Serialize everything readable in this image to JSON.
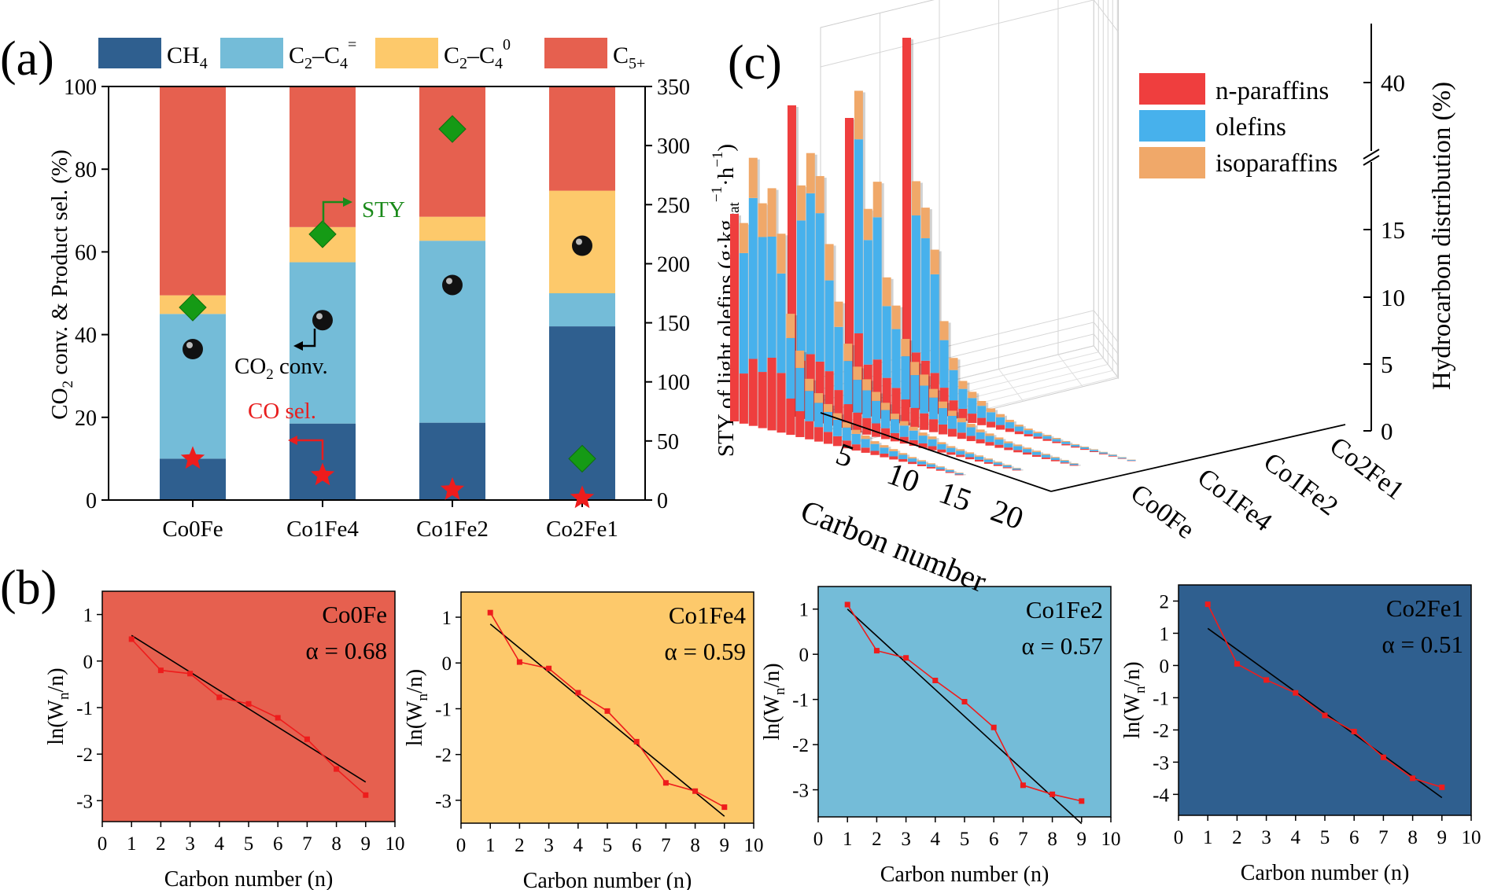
{
  "panel_labels": {
    "a": "(a)",
    "b": "(b)",
    "c": "(c)"
  },
  "chart_data": [
    {
      "id": "a",
      "type": "bar",
      "stacked": true,
      "categories": [
        "Co0Fe",
        "Co1Fe4",
        "Co1Fe2",
        "Co2Fe1"
      ],
      "series": [
        {
          "name": "CH4",
          "color": "#2f5f8f",
          "values": [
            10,
            18.5,
            18.7,
            42
          ]
        },
        {
          "name": "C2–C4=",
          "color": "#74bcd8",
          "values": [
            35,
            39,
            44,
            8
          ]
        },
        {
          "name": "C2–C40",
          "color": "#fdc96b",
          "values": [
            4.5,
            8.5,
            5.8,
            24.8
          ]
        },
        {
          "name": "C5+",
          "color": "#e6604f",
          "values": [
            50.5,
            34,
            31.5,
            25.2
          ]
        }
      ],
      "legend_text": {
        "ch4_main": "CH",
        "ch4_sub": "4",
        "c24e_main": "C",
        "c24e_sub1": "2",
        "c24e_dash": "–C",
        "c24e_sub2": "4",
        "c24e_sup": "=",
        "c24p_main": "C",
        "c24p_sub1": "2",
        "c24p_dash": "–C",
        "c24p_sub2": "4",
        "c24p_sup": "0",
        "c5_main": "C",
        "c5_sub": "5+"
      },
      "co2_conv": [
        36.5,
        43.5,
        52,
        61.5
      ],
      "co_sel": [
        10,
        6,
        2.5,
        0.5
      ],
      "sty": [
        163,
        225,
        314,
        35
      ],
      "ylim": [
        0,
        100
      ],
      "yticks": [
        0,
        20,
        40,
        60,
        80,
        100
      ],
      "y2lim": [
        0,
        350
      ],
      "y2ticks": [
        0,
        50,
        100,
        150,
        200,
        250,
        300,
        350
      ],
      "ylabel": {
        "a": "CO",
        "sub": "2",
        "b": " conv. & Product sel. (%)"
      },
      "y2label": {
        "a": "STY of light olefins (g·kg",
        "sub": "cat",
        "sup": "−1",
        "b": "·h",
        "sup2": "−1",
        "c": ")"
      },
      "annotations": {
        "sty": "STY",
        "co2_a": "CO",
        "co2_sub": "2",
        "co2_b": " conv.",
        "co": "CO sel."
      }
    },
    {
      "id": "b",
      "type": "line",
      "ylabel": {
        "a": "ln(W",
        "sub": "n",
        "b": "/n)"
      },
      "xlabel": "Carbon number (n)",
      "xlim": [
        0,
        10
      ],
      "xticks": [
        0,
        1,
        2,
        3,
        4,
        5,
        6,
        7,
        8,
        9,
        10
      ],
      "panels": [
        {
          "name": "Co0Fe",
          "alpha_text": "α = 0.68",
          "bg": "#e6604f",
          "x": [
            1,
            2,
            3,
            4,
            5,
            6,
            7,
            8,
            9
          ],
          "y": [
            0.47,
            -0.2,
            -0.27,
            -0.78,
            -0.92,
            -1.22,
            -1.68,
            -2.32,
            -2.88
          ],
          "fit": [
            0.55,
            -2.6
          ],
          "ylim": [
            -3.45,
            1.5
          ],
          "yticks": [
            1,
            0,
            -1,
            -2,
            -3
          ]
        },
        {
          "name": "Co1Fe4",
          "alpha_text": "α = 0.59",
          "bg": "#fdc96b",
          "x": [
            1,
            2,
            3,
            4,
            5,
            6,
            7,
            8,
            9
          ],
          "y": [
            1.1,
            0.02,
            -0.12,
            -0.65,
            -1.05,
            -1.72,
            -2.62,
            -2.8,
            -3.15
          ],
          "fit": [
            0.85,
            -3.35
          ],
          "ylim": [
            -3.5,
            1.55
          ],
          "yticks": [
            1,
            0,
            -1,
            -2,
            -3
          ]
        },
        {
          "name": "Co1Fe2",
          "alpha_text": "α = 0.57",
          "bg": "#74bcd8",
          "x": [
            1,
            2,
            3,
            4,
            5,
            6,
            7,
            8,
            9
          ],
          "y": [
            1.1,
            0.08,
            -0.08,
            -0.58,
            -1.05,
            -1.62,
            -2.9,
            -3.1,
            -3.25
          ],
          "fit": [
            1.0,
            -3.75
          ],
          "ylim": [
            -3.6,
            1.5
          ],
          "yticks": [
            1,
            0,
            -1,
            -2,
            -3
          ]
        },
        {
          "name": "Co2Fe1",
          "alpha_text": "α = 0.51",
          "bg": "#2f5f8f",
          "x": [
            1,
            2,
            3,
            4,
            5,
            6,
            7,
            8,
            9
          ],
          "y": [
            1.9,
            0.05,
            -0.45,
            -0.85,
            -1.55,
            -2.05,
            -2.85,
            -3.5,
            -3.78
          ],
          "fit": [
            1.15,
            -4.1
          ],
          "ylim": [
            -4.65,
            2.5
          ],
          "yticks": [
            2,
            1,
            0,
            -1,
            -2,
            -3,
            -4
          ]
        }
      ]
    },
    {
      "id": "c",
      "type": "bar3d",
      "legend": [
        {
          "name": "n-paraffins",
          "color": "#ef3e3e"
        },
        {
          "name": "olefins",
          "color": "#47b1ec"
        },
        {
          "name": "isoparaffins",
          "color": "#f0a869"
        }
      ],
      "catalysts": [
        "Co0Fe",
        "Co1Fe4",
        "Co1Fe2",
        "Co2Fe1"
      ],
      "xlabel": "Carbon number",
      "xticks": [
        5,
        10,
        15,
        20
      ],
      "zlabel": "Hydrocarbon distribution (%)",
      "zticks": [
        "0",
        "5",
        "10",
        "15",
        "40"
      ],
      "series": [
        {
          "catalyst": "Co0Fe",
          "n": [
            1,
            2,
            3,
            4,
            5,
            6,
            7,
            8,
            9,
            10,
            11,
            12,
            13,
            14,
            15,
            16,
            17,
            18,
            19,
            20,
            21,
            22,
            23,
            24,
            25
          ],
          "heights": [
            12,
            11.6,
            15.5,
            13,
            14,
            11.5,
            7,
            5,
            3.5,
            2.8,
            2.3,
            1.9,
            1.5,
            1.2,
            1,
            0.8,
            0.7,
            0.6,
            0.5,
            0.4,
            0.35,
            0.3,
            0.25,
            0.2,
            0.15
          ]
        },
        {
          "catalyst": "Co1Fe4",
          "n": [
            1,
            2,
            3,
            4,
            5,
            6,
            7,
            8,
            9,
            10,
            11,
            12,
            13,
            14,
            15,
            16,
            17,
            18,
            19,
            20,
            21,
            22,
            23,
            24,
            25
          ],
          "heights": [
            18,
            13.5,
            15.5,
            14.3,
            10.5,
            7.3,
            5,
            3.8,
            3.2,
            2.6,
            2.1,
            1.6,
            1.3,
            1.1,
            0.9,
            0.8,
            0.6,
            0.5,
            0.45,
            0.4,
            0.35,
            0.3,
            0.25,
            0.2,
            0.15
          ]
        },
        {
          "catalyst": "Co1Fe2",
          "n": [
            1,
            2,
            3,
            4,
            5,
            6,
            7,
            8,
            9,
            10,
            11,
            12,
            13,
            14,
            15,
            16,
            17,
            18,
            19,
            20,
            21,
            22,
            23,
            24,
            25
          ],
          "heights": [
            17,
            18.7,
            12,
            13.7,
            8.3,
            6.8,
            5,
            3.8,
            3.2,
            2.5,
            1.9,
            1.5,
            1.2,
            1,
            0.8,
            0.7,
            0.6,
            0.5,
            0.45,
            0.4,
            0.35,
            0.3,
            0.25,
            0.2,
            0.15
          ]
        },
        {
          "catalyst": "Co2Fe1",
          "n": [
            1,
            2,
            3,
            4,
            5,
            6,
            7,
            8,
            9,
            10,
            11,
            12,
            13,
            14,
            15,
            16,
            17,
            18,
            19,
            20,
            21,
            22,
            23,
            24,
            25
          ],
          "heights": [
            43,
            13.2,
            11.8,
            9.5,
            5.5,
            3.5,
            2.3,
            1.8,
            1.4,
            1.1,
            0.9,
            0.7,
            0.55,
            0.45,
            0.4,
            0.35,
            0.3,
            0.25,
            0.2,
            0.18,
            0.16,
            0.14,
            0.12,
            0.1,
            0.08
          ]
        }
      ]
    }
  ]
}
